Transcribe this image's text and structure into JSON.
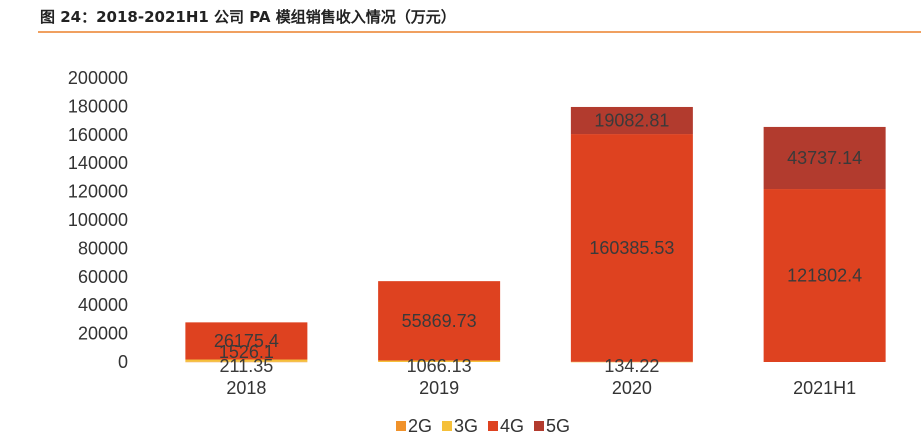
{
  "header": {
    "title": "图 24：2018-2021H1 公司 PA 模组销售收入情况（万元）"
  },
  "chart_data": {
    "type": "bar",
    "stacked": true,
    "title": "",
    "xlabel": "",
    "ylabel": "",
    "categories": [
      "2018",
      "2019",
      "2020",
      "2021H1"
    ],
    "ylim": [
      0,
      200000
    ],
    "yticks": [
      0,
      20000,
      40000,
      60000,
      80000,
      100000,
      120000,
      140000,
      160000,
      180000,
      200000
    ],
    "grid": false,
    "legend_position": "bottom",
    "series": [
      {
        "name": "2G",
        "color": "#f0922b",
        "values": [
          211.35,
          null,
          null,
          null
        ],
        "labels": [
          "211.35",
          "",
          "",
          ""
        ]
      },
      {
        "name": "3G",
        "color": "#f5c03a",
        "values": [
          1526.1,
          1066.13,
          134.22,
          null
        ],
        "labels": [
          "1526.1",
          "1066.13",
          "134.22",
          ""
        ]
      },
      {
        "name": "4G",
        "color": "#de4220",
        "values": [
          26175.4,
          55869.73,
          160385.53,
          121802.4
        ],
        "labels": [
          "26175.4",
          "55869.73",
          "160385.53",
          "121802.4"
        ]
      },
      {
        "name": "5G",
        "color": "#b23b2e",
        "values": [
          null,
          null,
          19082.81,
          43737.14
        ],
        "labels": [
          "",
          "",
          "19082.81",
          "43737.14"
        ]
      }
    ]
  }
}
